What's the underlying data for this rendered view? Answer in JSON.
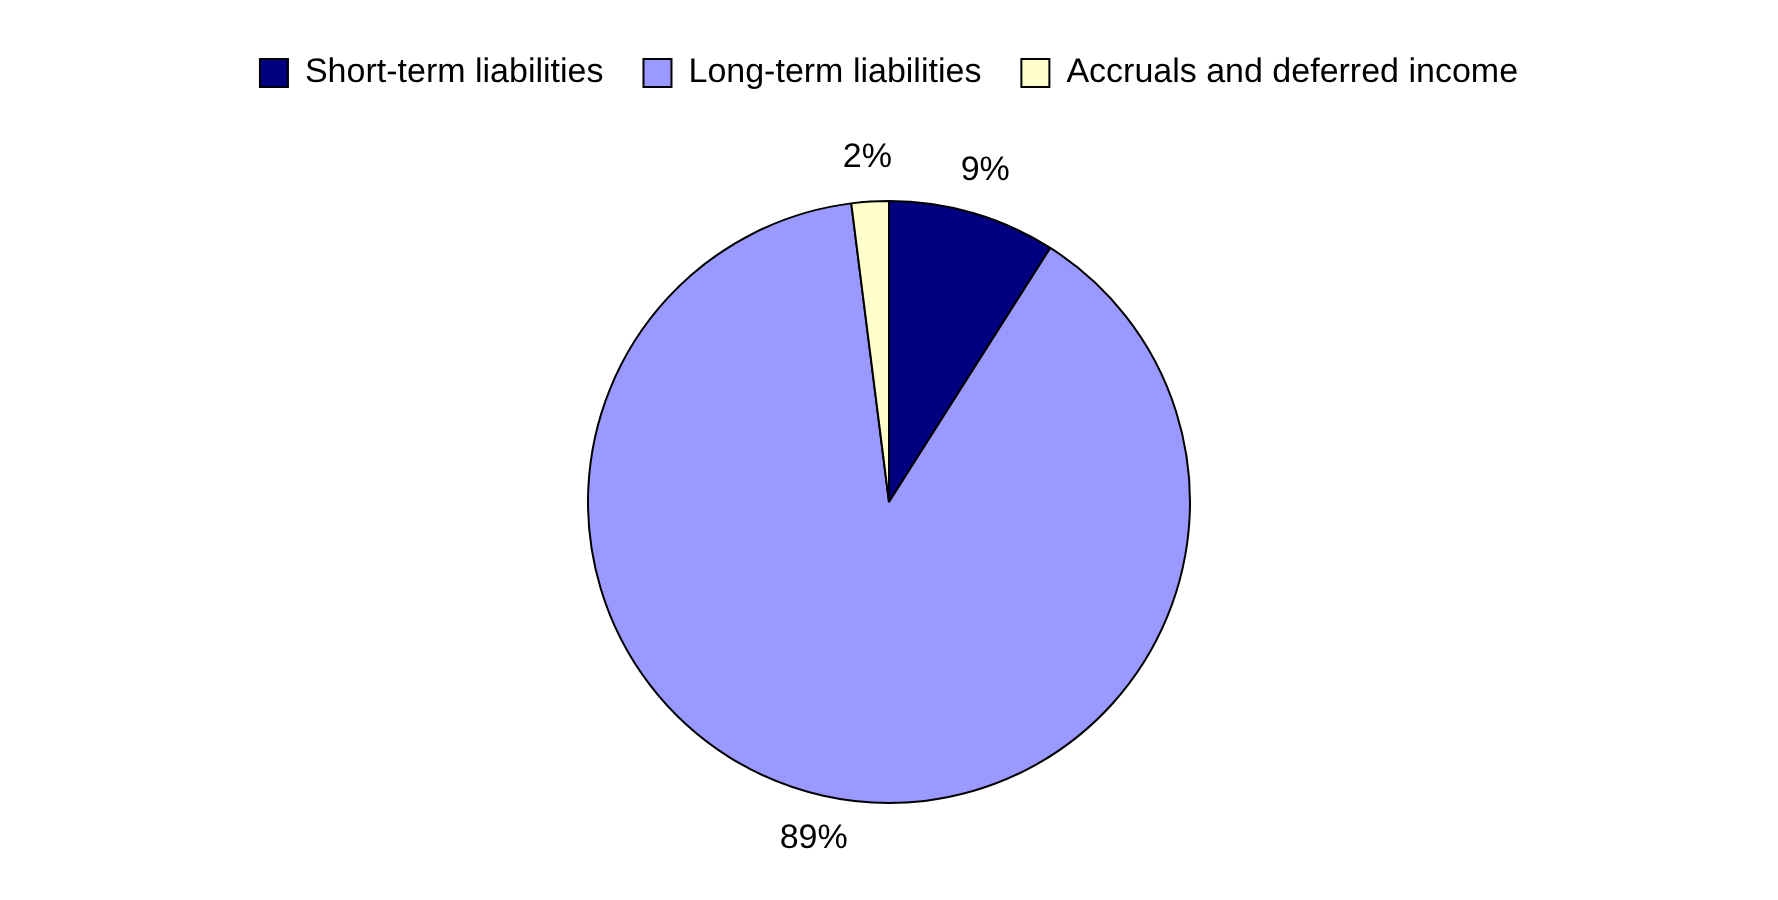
{
  "chart_data": {
    "type": "pie",
    "categories": [
      "Short-term liabilities",
      "Long-term liabilities",
      "Accruals and deferred income"
    ],
    "values": [
      9,
      89,
      2
    ],
    "colors": [
      "#000080",
      "#9999ff",
      "#ffffcc"
    ],
    "value_labels": [
      "9%",
      "89%",
      "2%"
    ],
    "legend": "top"
  }
}
